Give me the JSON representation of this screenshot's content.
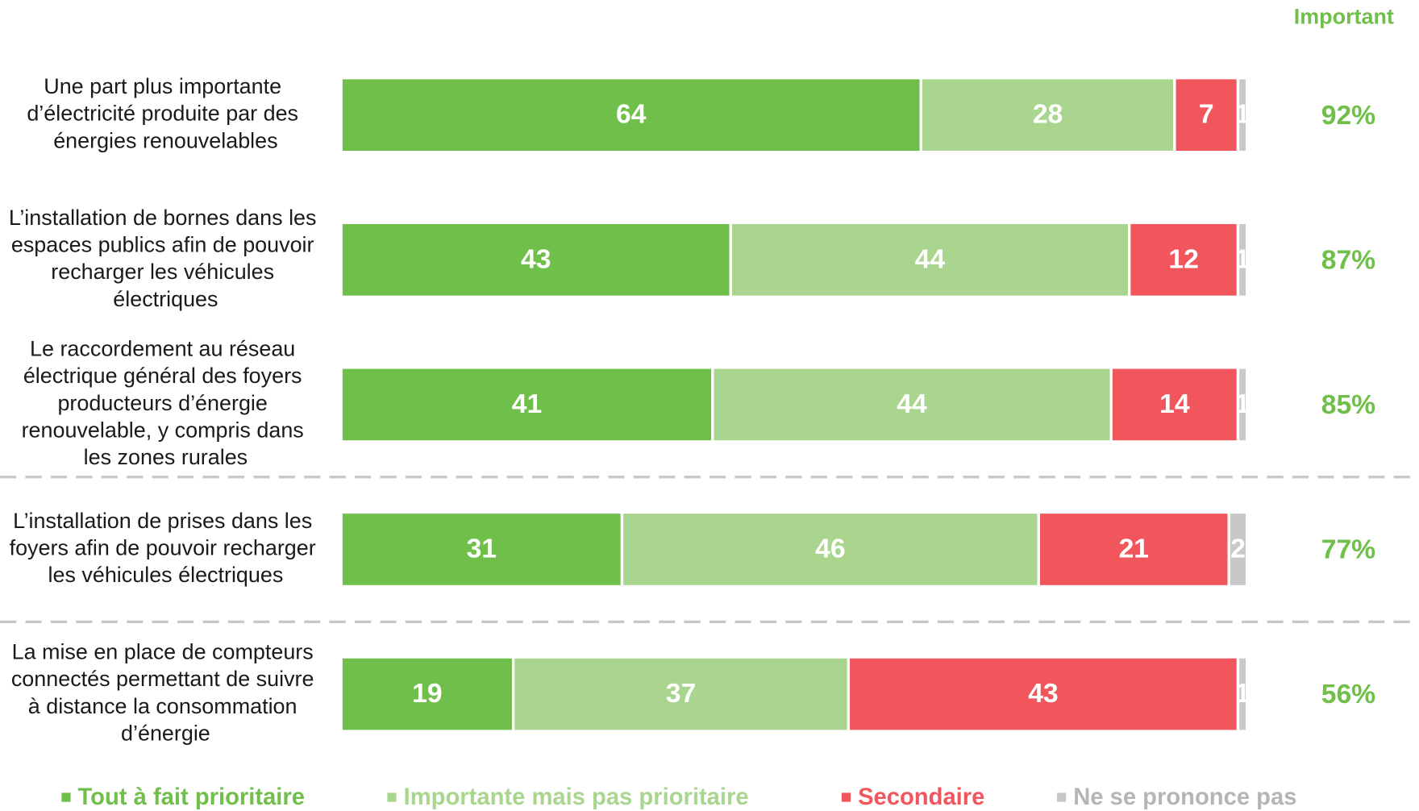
{
  "chart_data": {
    "type": "stacked-bar-horizontal",
    "categories": [
      "Une part plus importante d’électricité produite par des énergies renouvelables",
      "L’installation de bornes dans les espaces publics afin de pouvoir recharger les véhicules électriques",
      "Le raccordement au réseau électrique général des foyers producteurs d’énergie renouvelable, y compris dans les zones rurales",
      "L’installation de prises dans les foyers afin de pouvoir recharger les véhicules électriques",
      "La mise en place de compteurs connectés permettant de suivre à distance la consommation d’énergie"
    ],
    "series": [
      {
        "name": "Tout à fait prioritaire",
        "color": "#70bf4b",
        "values": [
          64,
          43,
          41,
          31,
          19
        ]
      },
      {
        "name": "Importante mais pas prioritaire",
        "color": "#a9d58e",
        "values": [
          28,
          44,
          44,
          46,
          37
        ]
      },
      {
        "name": "Secondaire",
        "color": "#f0565c",
        "values": [
          7,
          12,
          14,
          21,
          43
        ]
      },
      {
        "name": "Ne se prononce pas",
        "color": "#c8c8c8",
        "values": [
          1,
          1,
          1,
          2,
          1
        ]
      }
    ],
    "xlim": [
      0,
      100
    ],
    "important": {
      "title": "Important",
      "color": "#70bf4b",
      "values": [
        92,
        87,
        85,
        77,
        56
      ],
      "value_labels": [
        "92%",
        "87%",
        "85%",
        "77%",
        "56%"
      ]
    }
  }
}
